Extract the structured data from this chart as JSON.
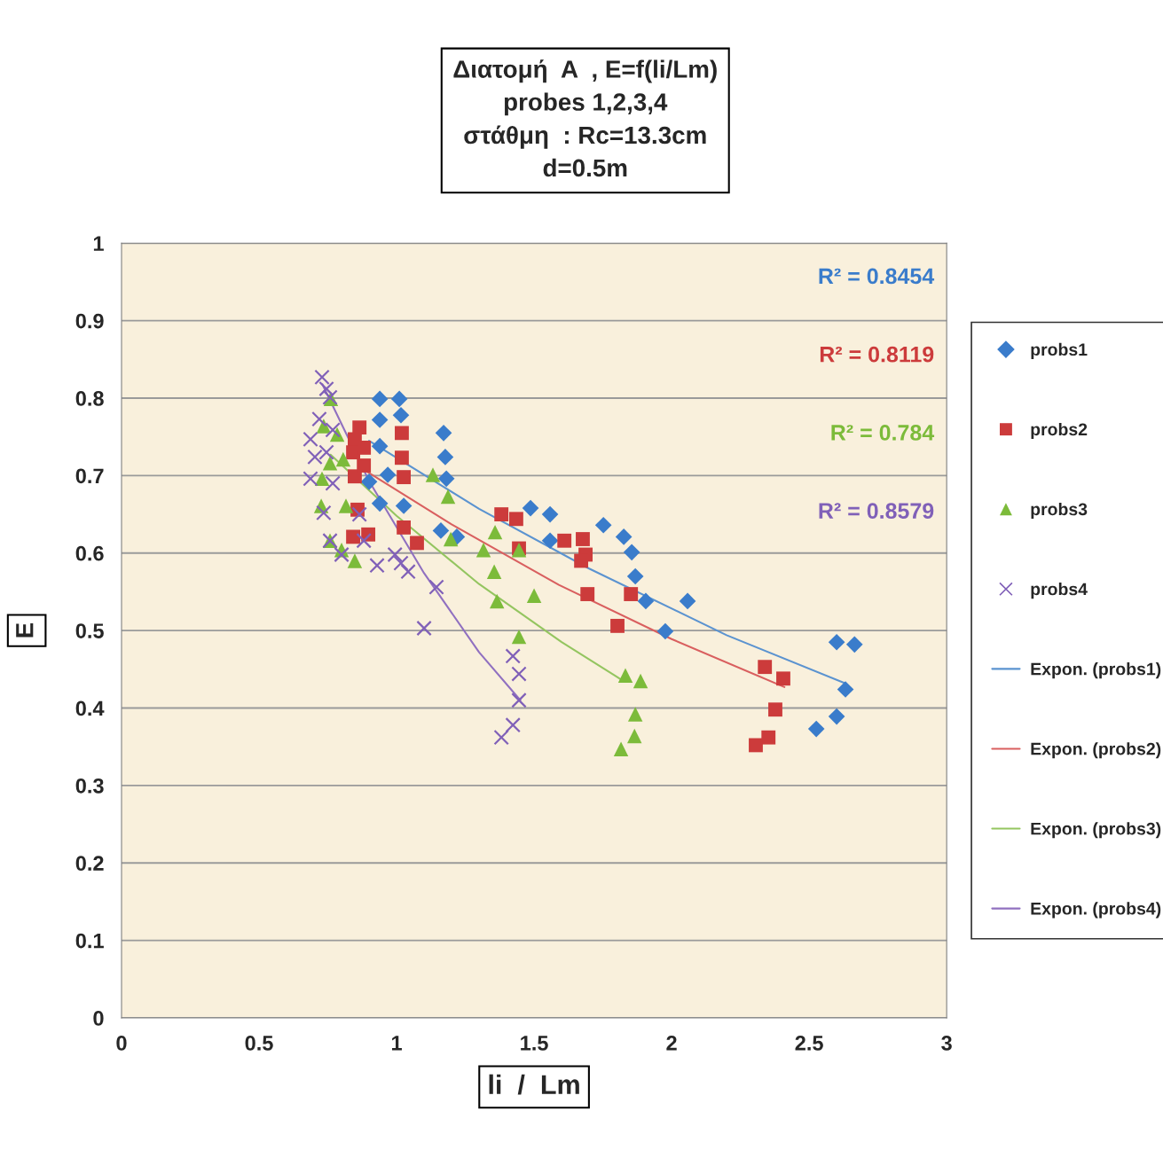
{
  "chart_data": {
    "type": "scatter",
    "title": "Διατομή  A  , E=f(li/Lm)\nprobes 1,2,3,4\nστάθμη  : Rc=13.3cm\nd=0.5m",
    "xlabel": "li  /  Lm",
    "ylabel": "E",
    "xlim": [
      0,
      3
    ],
    "ylim": [
      0,
      1
    ],
    "xticks": [
      0,
      0.5,
      1,
      1.5,
      2,
      2.5,
      3
    ],
    "yticks": [
      0,
      0.1,
      0.2,
      0.3,
      0.4,
      0.5,
      0.6,
      0.7,
      0.8,
      0.9,
      1
    ],
    "grid": "y",
    "legend": "right",
    "annotations": [
      "R² = 0.8454",
      "R² = 0.8119",
      "R² = 0.784",
      "R² = 0.8579"
    ],
    "series": [
      {
        "name": "probs1",
        "color": "#3a7ccb",
        "marker": "diamond",
        "x": [
          0.939,
          1.01,
          0.939,
          1.016,
          0.939,
          0.968,
          0.9,
          0.939,
          1.026,
          1.171,
          1.177,
          1.181,
          1.161,
          1.219,
          1.487,
          1.558,
          1.558,
          1.752,
          1.826,
          1.855,
          1.868,
          1.906,
          1.977,
          2.058,
          2.526,
          2.6,
          2.632,
          2.6,
          2.665
        ],
        "values": [
          0.799,
          0.799,
          0.772,
          0.778,
          0.738,
          0.701,
          0.692,
          0.664,
          0.661,
          0.755,
          0.724,
          0.696,
          0.629,
          0.621,
          0.658,
          0.65,
          0.616,
          0.636,
          0.621,
          0.601,
          0.57,
          0.538,
          0.499,
          0.538,
          0.373,
          0.389,
          0.424,
          0.485,
          0.482
        ]
      },
      {
        "name": "probs2",
        "color": "#cc3b3b",
        "marker": "square",
        "x": [
          0.848,
          0.865,
          0.842,
          0.881,
          0.848,
          0.881,
          0.858,
          0.842,
          0.897,
          1.019,
          1.019,
          1.026,
          1.026,
          1.074,
          1.381,
          1.435,
          1.445,
          1.61,
          1.677,
          1.687,
          1.671,
          1.694,
          1.803,
          1.852,
          2.339,
          2.406,
          2.377,
          2.352,
          2.306
        ],
        "values": [
          0.747,
          0.762,
          0.73,
          0.736,
          0.699,
          0.713,
          0.656,
          0.621,
          0.624,
          0.755,
          0.723,
          0.698,
          0.633,
          0.613,
          0.65,
          0.644,
          0.606,
          0.616,
          0.618,
          0.598,
          0.59,
          0.547,
          0.506,
          0.547,
          0.453,
          0.438,
          0.398,
          0.362,
          0.352
        ]
      },
      {
        "name": "probs3",
        "color": "#7cbb3a",
        "marker": "triangle",
        "x": [
          0.761,
          0.735,
          0.784,
          0.758,
          0.806,
          0.729,
          0.816,
          0.726,
          0.758,
          0.8,
          0.848,
          1.132,
          1.187,
          1.197,
          1.316,
          1.358,
          1.355,
          1.365,
          1.445,
          1.445,
          1.5,
          1.832,
          1.887,
          1.868,
          1.865,
          1.816
        ],
        "values": [
          0.799,
          0.764,
          0.753,
          0.716,
          0.721,
          0.696,
          0.661,
          0.661,
          0.616,
          0.604,
          0.59,
          0.701,
          0.673,
          0.618,
          0.604,
          0.627,
          0.576,
          0.538,
          0.492,
          0.604,
          0.545,
          0.442,
          0.435,
          0.392,
          0.364,
          0.347
        ]
      },
      {
        "name": "probs4",
        "color": "#8060b8",
        "marker": "cross",
        "x": [
          0.729,
          0.745,
          0.758,
          0.719,
          0.768,
          0.687,
          0.703,
          0.745,
          0.687,
          0.768,
          0.735,
          0.758,
          0.8,
          0.865,
          0.881,
          0.929,
          0.994,
          1.016,
          1.042,
          1.1,
          1.145,
          1.423,
          1.445,
          1.445,
          1.423,
          1.381
        ],
        "values": [
          0.827,
          0.812,
          0.801,
          0.773,
          0.759,
          0.747,
          0.724,
          0.73,
          0.696,
          0.69,
          0.652,
          0.616,
          0.598,
          0.65,
          0.616,
          0.584,
          0.598,
          0.587,
          0.576,
          0.503,
          0.556,
          0.467,
          0.444,
          0.41,
          0.378,
          0.362
        ]
      },
      {
        "name": "Expon. (probs1)",
        "type": "line",
        "color": "#5b93d0",
        "x": [
          0.9,
          1.3,
          1.7,
          2.2,
          2.63
        ],
        "values": [
          0.745,
          0.657,
          0.58,
          0.494,
          0.432
        ]
      },
      {
        "name": "Expon. (probs2)",
        "type": "line",
        "color": "#d95f5f",
        "x": [
          0.87,
          1.2,
          1.59,
          2.0,
          2.41
        ],
        "values": [
          0.71,
          0.637,
          0.559,
          0.489,
          0.427
        ]
      },
      {
        "name": "Expon. (probs3)",
        "type": "line",
        "color": "#94c560",
        "x": [
          0.76,
          1.0,
          1.3,
          1.6,
          1.82
        ],
        "values": [
          0.727,
          0.648,
          0.56,
          0.485,
          0.436
        ]
      },
      {
        "name": "Expon. (probs4)",
        "type": "line",
        "color": "#9070c0",
        "x": [
          0.73,
          0.9,
          1.1,
          1.3,
          1.45
        ],
        "values": [
          0.818,
          0.693,
          0.574,
          0.472,
          0.41
        ]
      }
    ]
  }
}
